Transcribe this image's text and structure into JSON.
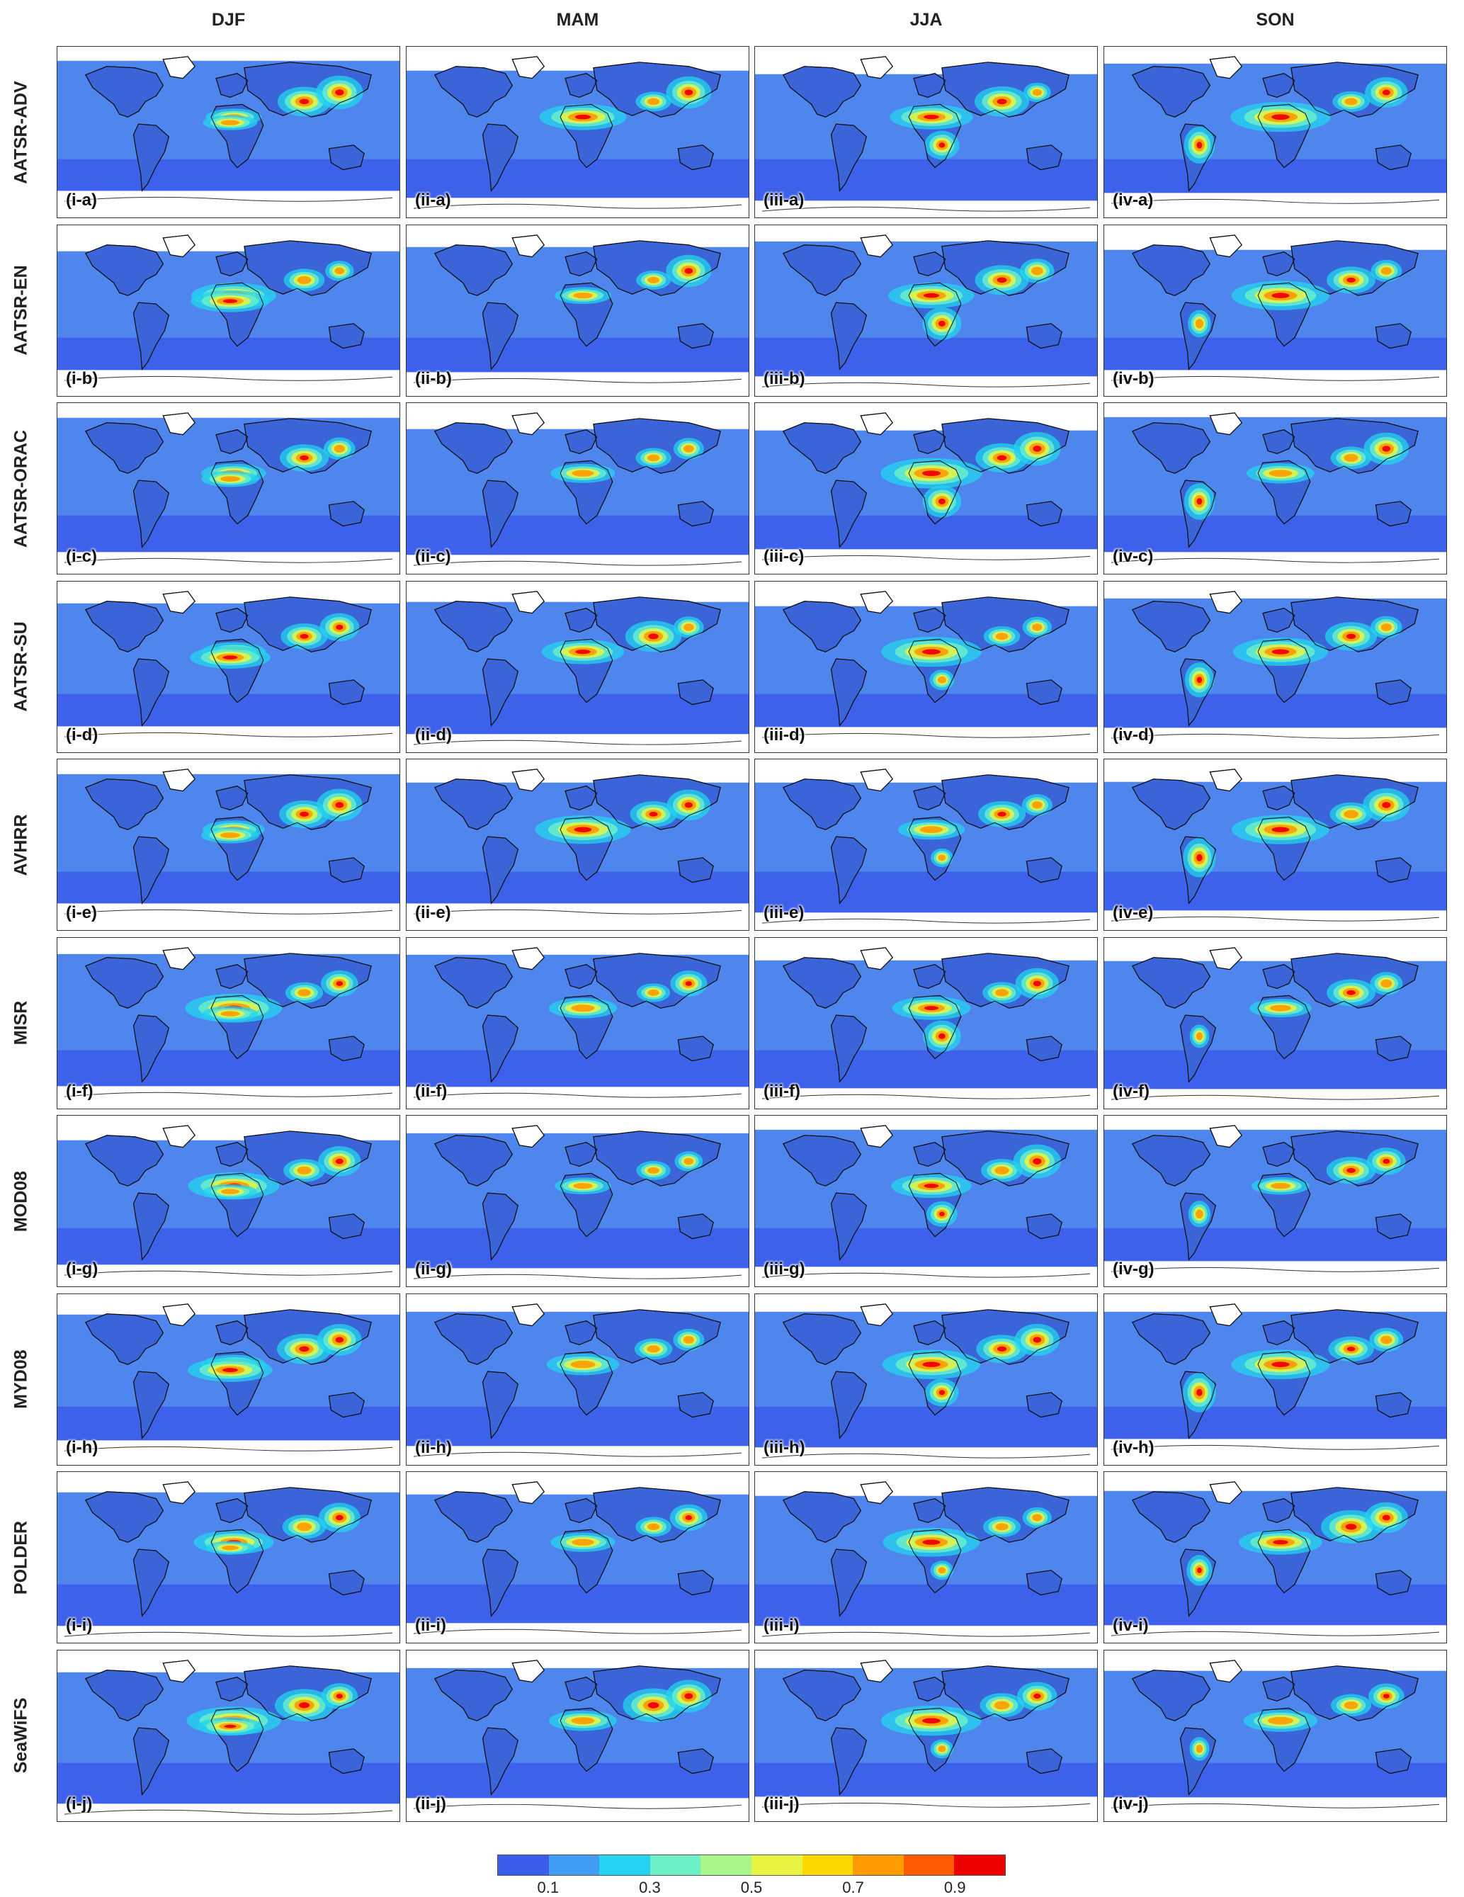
{
  "chart_data": {
    "type": "heatmap",
    "title": "",
    "seasons": [
      "DJF",
      "MAM",
      "JJA",
      "SON"
    ],
    "products": [
      "AATSR-ADV",
      "AATSR-EN",
      "AATSR-ORAC",
      "AATSR-SU",
      "AVHRR",
      "MISR",
      "MOD08",
      "MYD08",
      "POLDER",
      "SeaWiFS"
    ],
    "panel_labels": [
      [
        "(i-a)",
        "(ii-a)",
        "(iii-a)",
        "(iv-a)"
      ],
      [
        "(i-b)",
        "(ii-b)",
        "(iii-b)",
        "(iv-b)"
      ],
      [
        "(i-c)",
        "(ii-c)",
        "(iii-c)",
        "(iv-c)"
      ],
      [
        "(i-d)",
        "(ii-d)",
        "(iii-d)",
        "(iv-d)"
      ],
      [
        "(i-e)",
        "(ii-e)",
        "(iii-e)",
        "(iv-e)"
      ],
      [
        "(i-f)",
        "(ii-f)",
        "(iii-f)",
        "(iv-f)"
      ],
      [
        "(i-g)",
        "(ii-g)",
        "(iii-g)",
        "(iv-g)"
      ],
      [
        "(i-h)",
        "(ii-h)",
        "(iii-h)",
        "(iv-h)"
      ],
      [
        "(i-i)",
        "(ii-i)",
        "(iii-i)",
        "(iv-i)"
      ],
      [
        "(i-j)",
        "(ii-j)",
        "(iii-j)",
        "(iv-j)"
      ]
    ],
    "colorbar": {
      "ticks": [
        "0.1",
        "0.3",
        "0.5",
        "0.7",
        "0.9"
      ],
      "range": [
        0,
        1
      ],
      "colors": [
        "#3b5bea",
        "#3f9cf2",
        "#23d3ef",
        "#6cf0c8",
        "#a8f58c",
        "#e7f542",
        "#ffd700",
        "#ff9a00",
        "#ff5a00",
        "#ee0000"
      ]
    },
    "background_color": "#4f86ee",
    "land_color": "#3a64d8",
    "hotspot_colors": [
      "#ee0000",
      "#ff9a00",
      "#e7f542",
      "#6cf0c8",
      "#23d3ef"
    ]
  }
}
